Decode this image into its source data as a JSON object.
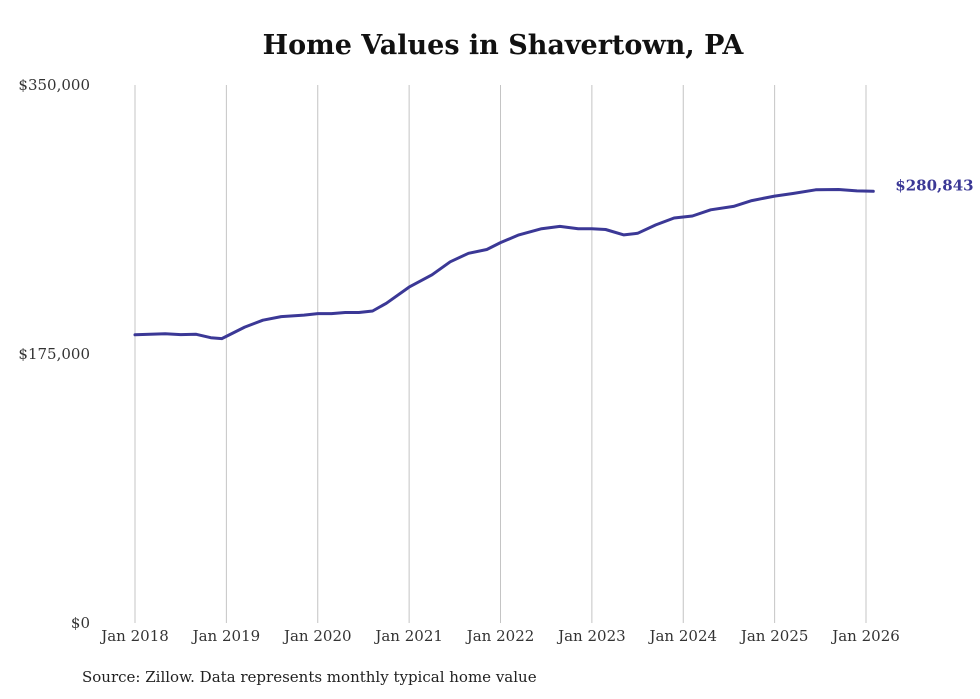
{
  "chart_data": {
    "type": "line",
    "title": "Home Values in Shavertown, PA",
    "source": "Source: Zillow. Data represents monthly typical home value",
    "xlabel": "",
    "ylabel": "",
    "ylim": [
      0,
      350000
    ],
    "y_ticks": [
      {
        "value": 0,
        "label": "$0"
      },
      {
        "value": 175000,
        "label": "$175,000"
      },
      {
        "value": 350000,
        "label": "$350,000"
      }
    ],
    "x_ticks": [
      {
        "year": 2018,
        "label": "Jan 2018"
      },
      {
        "year": 2019,
        "label": "Jan 2019"
      },
      {
        "year": 2020,
        "label": "Jan 2020"
      },
      {
        "year": 2021,
        "label": "Jan 2021"
      },
      {
        "year": 2022,
        "label": "Jan 2022"
      },
      {
        "year": 2023,
        "label": "Jan 2023"
      },
      {
        "year": 2024,
        "label": "Jan 2024"
      },
      {
        "year": 2025,
        "label": "Jan 2025"
      },
      {
        "year": 2026,
        "label": "Jan 2026"
      }
    ],
    "grid": "vertical",
    "series": [
      {
        "name": "Typical home value",
        "color": "#3b3896",
        "end_label": "$280,843",
        "points": [
          {
            "x": 2018.0,
            "y": 187500
          },
          {
            "x": 2018.33,
            "y": 188200
          },
          {
            "x": 2018.5,
            "y": 187600
          },
          {
            "x": 2018.67,
            "y": 187800
          },
          {
            "x": 2018.83,
            "y": 185600
          },
          {
            "x": 2018.95,
            "y": 185000
          },
          {
            "x": 2019.2,
            "y": 192500
          },
          {
            "x": 2019.4,
            "y": 197000
          },
          {
            "x": 2019.6,
            "y": 199300
          },
          {
            "x": 2019.85,
            "y": 200300
          },
          {
            "x": 2020.0,
            "y": 201300
          },
          {
            "x": 2020.15,
            "y": 201300
          },
          {
            "x": 2020.3,
            "y": 202000
          },
          {
            "x": 2020.45,
            "y": 202000
          },
          {
            "x": 2020.6,
            "y": 203000
          },
          {
            "x": 2020.75,
            "y": 208000
          },
          {
            "x": 2021.0,
            "y": 218500
          },
          {
            "x": 2021.25,
            "y": 226500
          },
          {
            "x": 2021.45,
            "y": 235000
          },
          {
            "x": 2021.65,
            "y": 240500
          },
          {
            "x": 2021.85,
            "y": 243000
          },
          {
            "x": 2022.0,
            "y": 247500
          },
          {
            "x": 2022.2,
            "y": 252500
          },
          {
            "x": 2022.45,
            "y": 256500
          },
          {
            "x": 2022.65,
            "y": 258000
          },
          {
            "x": 2022.85,
            "y": 256500
          },
          {
            "x": 2023.0,
            "y": 256500
          },
          {
            "x": 2023.15,
            "y": 256000
          },
          {
            "x": 2023.35,
            "y": 252500
          },
          {
            "x": 2023.5,
            "y": 253500
          },
          {
            "x": 2023.7,
            "y": 259000
          },
          {
            "x": 2023.9,
            "y": 263500
          },
          {
            "x": 2024.1,
            "y": 264800
          },
          {
            "x": 2024.3,
            "y": 268800
          },
          {
            "x": 2024.55,
            "y": 271000
          },
          {
            "x": 2024.75,
            "y": 274800
          },
          {
            "x": 2025.0,
            "y": 277700
          },
          {
            "x": 2025.2,
            "y": 279400
          },
          {
            "x": 2025.45,
            "y": 281800
          },
          {
            "x": 2025.7,
            "y": 282000
          },
          {
            "x": 2025.9,
            "y": 281100
          },
          {
            "x": 2026.08,
            "y": 280843
          }
        ]
      }
    ]
  }
}
